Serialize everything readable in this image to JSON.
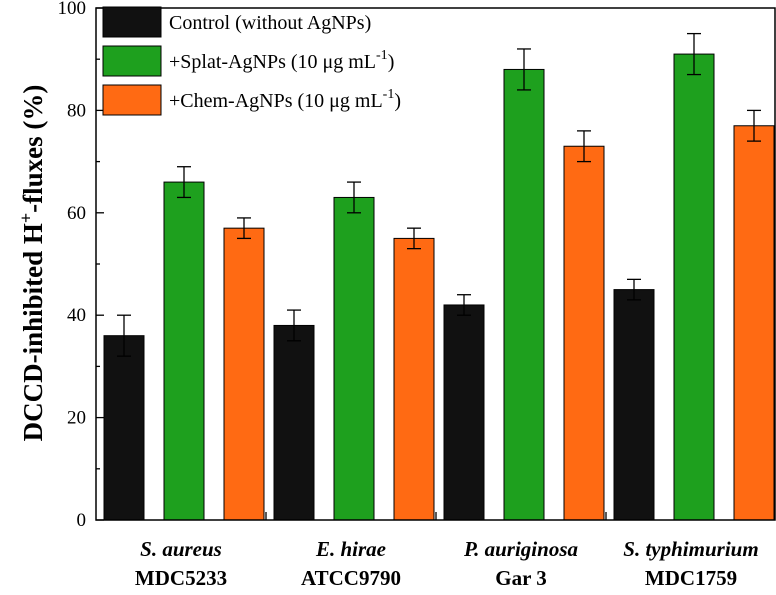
{
  "chart_data": {
    "type": "bar",
    "title": "",
    "ylabel": "DCCD-inhibited H+-fluxes (%)",
    "xlabel": "",
    "ylim": [
      0,
      100
    ],
    "yticks": [
      0,
      20,
      40,
      60,
      80,
      100
    ],
    "categories": [
      {
        "name": "S. aureus",
        "strain": "MDC5233"
      },
      {
        "name": "E. hirae",
        "strain": "ATCC9790"
      },
      {
        "name": "P. auriginosa",
        "strain": "Gar 3"
      },
      {
        "name": "S. typhimurium",
        "strain": "MDC1759"
      }
    ],
    "series": [
      {
        "name": "Control (without AgNPs)",
        "color": "#111111",
        "values": [
          36,
          38,
          42,
          45
        ],
        "errors": [
          4,
          3,
          2,
          2
        ]
      },
      {
        "name": "+Splat-AgNPs (10 μg mL-1)",
        "color": "#1ea01e",
        "values": [
          66,
          63,
          88,
          91
        ],
        "errors": [
          3,
          3,
          4,
          4
        ]
      },
      {
        "name": "+Chem-AgNPs (10 μg mL-1)",
        "color": "#ff6a13",
        "values": [
          57,
          55,
          73,
          77
        ],
        "errors": [
          2,
          2,
          3,
          3
        ]
      }
    ],
    "legend": {
      "position": "top-left",
      "entries": [
        {
          "main": "Control (without AgNPs)",
          "sup": ""
        },
        {
          "main": "+Splat-AgNPs (10 μg mL",
          "sup": "-1",
          "tail": ")"
        },
        {
          "main": "+Chem-AgNPs (10 μg mL",
          "sup": "-1",
          "tail": ")"
        }
      ]
    },
    "ylabel_parts": {
      "pre": "DCCD-inhibited H",
      "sup": "+",
      "post": "-fluxes (%)"
    }
  }
}
